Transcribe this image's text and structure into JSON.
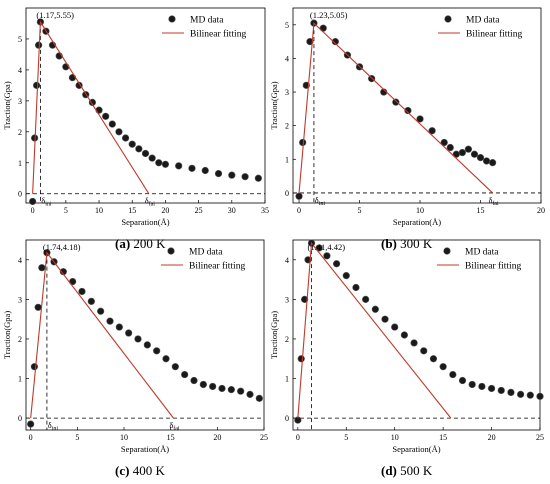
{
  "figure": {
    "legend": {
      "md_label": "MD data",
      "fit_label": "Bilinear fitting"
    },
    "colors": {
      "fit": "#c0392b",
      "marker": "#1a1a1a",
      "axis": "#000000"
    }
  },
  "chart_data": [
    {
      "type": "scatter",
      "caption_id": "(a)",
      "caption_text": " 200 K",
      "xlabel": "Separation(Å)",
      "ylabel": "Traction(Gpa)",
      "xlim": [
        -1,
        35
      ],
      "ylim": [
        -0.3,
        6
      ],
      "xticks": [
        0,
        5,
        10,
        15,
        20,
        25,
        30,
        35
      ],
      "yticks": [
        0,
        1,
        2,
        3,
        4,
        5
      ],
      "peak": [
        1.17,
        5.55
      ],
      "peak_label": "(1.17,5.55)",
      "delta_ini": 1.17,
      "delta_fai": 17.5,
      "delta_ini_label": "δini",
      "delta_fai_label": "δfai",
      "legend_position": "top-right",
      "md_data": {
        "x": [
          0,
          0.3,
          0.6,
          0.9,
          1.17,
          2,
          3,
          4,
          5,
          6,
          7,
          8,
          9,
          10,
          11,
          12,
          13,
          14,
          15,
          16,
          17,
          18,
          19,
          20,
          22,
          24,
          26,
          28,
          30,
          32,
          34
        ],
        "y": [
          -0.25,
          1.8,
          3.5,
          4.8,
          5.55,
          5.25,
          4.8,
          4.45,
          4.1,
          3.75,
          3.5,
          3.2,
          2.95,
          2.7,
          2.5,
          2.25,
          2.0,
          1.8,
          1.6,
          1.45,
          1.3,
          1.15,
          1.0,
          0.95,
          0.9,
          0.82,
          0.75,
          0.65,
          0.6,
          0.55,
          0.5
        ]
      },
      "bilinear": {
        "x": [
          0,
          1.17,
          17.5
        ],
        "y": [
          0,
          5.55,
          0
        ]
      }
    },
    {
      "type": "scatter",
      "caption_id": "(b)",
      "caption_text": " 300 K",
      "xlabel": "Separation(Å)",
      "ylabel": "Traction(Gpa)",
      "xlim": [
        -0.5,
        20
      ],
      "ylim": [
        -0.3,
        5.5
      ],
      "xticks": [
        0,
        5,
        10,
        15,
        20
      ],
      "yticks": [
        0,
        1,
        2,
        3,
        4,
        5
      ],
      "peak": [
        1.23,
        5.05
      ],
      "peak_label": "(1.23,5.05)",
      "delta_ini": 1.23,
      "delta_fai": 16,
      "delta_ini_label": "δini",
      "delta_fai_label": "δfai",
      "legend_position": "top-right",
      "md_data": {
        "x": [
          0,
          0.3,
          0.6,
          0.9,
          1.23,
          2,
          3,
          4,
          5,
          6,
          7,
          8,
          9,
          10,
          11,
          12,
          12.5,
          13,
          13.5,
          14,
          14.5,
          15,
          15.5,
          16
        ],
        "y": [
          -0.1,
          1.5,
          3.2,
          4.5,
          5.05,
          4.9,
          4.5,
          4.1,
          3.75,
          3.4,
          3.0,
          2.7,
          2.45,
          2.2,
          1.85,
          1.5,
          1.35,
          1.15,
          1.2,
          1.3,
          1.15,
          1.05,
          0.95,
          0.9
        ]
      },
      "bilinear": {
        "x": [
          0,
          1.23,
          16
        ],
        "y": [
          0,
          5.05,
          0
        ]
      }
    },
    {
      "type": "scatter",
      "caption_id": "(c)",
      "caption_text": " 400 K",
      "xlabel": "Separation(Å)",
      "ylabel": "Traction(Gpa)",
      "xlim": [
        -0.5,
        25
      ],
      "ylim": [
        -0.3,
        4.5
      ],
      "xticks": [
        0,
        5,
        10,
        15,
        20,
        25
      ],
      "yticks": [
        0,
        1,
        2,
        3,
        4
      ],
      "peak": [
        1.74,
        4.18
      ],
      "peak_label": "(1.74,4.18)",
      "delta_ini": 1.74,
      "delta_fai": 15.3,
      "delta_ini_label": "δini",
      "delta_fai_label": "δfai",
      "legend_position": "top-right",
      "md_data": {
        "x": [
          0,
          0.4,
          0.8,
          1.2,
          1.74,
          2.5,
          3.5,
          4.5,
          5.5,
          6.5,
          7.5,
          8.5,
          9.5,
          10.5,
          11.5,
          12.5,
          13.5,
          14.5,
          15.5,
          16.5,
          17.5,
          18.5,
          19.5,
          20.5,
          21.5,
          22.5,
          23.5,
          24.5
        ],
        "y": [
          -0.15,
          1.3,
          2.8,
          3.8,
          4.18,
          3.95,
          3.7,
          3.45,
          3.2,
          2.95,
          2.7,
          2.45,
          2.3,
          2.15,
          2.0,
          1.85,
          1.7,
          1.5,
          1.3,
          1.1,
          0.95,
          0.85,
          0.8,
          0.75,
          0.72,
          0.68,
          0.6,
          0.5
        ]
      },
      "bilinear": {
        "x": [
          0,
          1.74,
          15.3
        ],
        "y": [
          0,
          4.18,
          0
        ]
      }
    },
    {
      "type": "scatter",
      "caption_id": "(d)",
      "caption_text": " 500 K",
      "xlabel": "Separation(Å)",
      "ylabel": "Traction(Gpa)",
      "xlim": [
        -0.5,
        25
      ],
      "ylim": [
        -0.3,
        4.5
      ],
      "xticks": [
        0,
        5,
        10,
        15,
        20,
        25
      ],
      "yticks": [
        0,
        1,
        2,
        3,
        4
      ],
      "peak": [
        1.41,
        4.42
      ],
      "peak_label": "(1.41,4.42)",
      "delta_ini": 1.41,
      "delta_fai": 15.8,
      "legend_position": "top-right",
      "md_data": {
        "x": [
          0,
          0.35,
          0.7,
          1.05,
          1.41,
          2.2,
          3,
          4,
          5,
          6,
          7,
          8,
          9,
          10,
          11,
          12,
          13,
          14,
          15,
          16,
          17,
          18,
          19,
          20,
          21,
          22,
          23,
          24,
          25
        ],
        "y": [
          -0.05,
          1.5,
          3.0,
          4.0,
          4.42,
          4.3,
          4.1,
          3.9,
          3.6,
          3.3,
          3.0,
          2.75,
          2.5,
          2.3,
          2.1,
          1.9,
          1.7,
          1.5,
          1.3,
          1.1,
          0.95,
          0.85,
          0.8,
          0.75,
          0.7,
          0.65,
          0.6,
          0.58,
          0.55
        ]
      },
      "bilinear": {
        "x": [
          0,
          1.41,
          15.8
        ],
        "y": [
          0,
          4.42,
          0
        ]
      }
    }
  ]
}
